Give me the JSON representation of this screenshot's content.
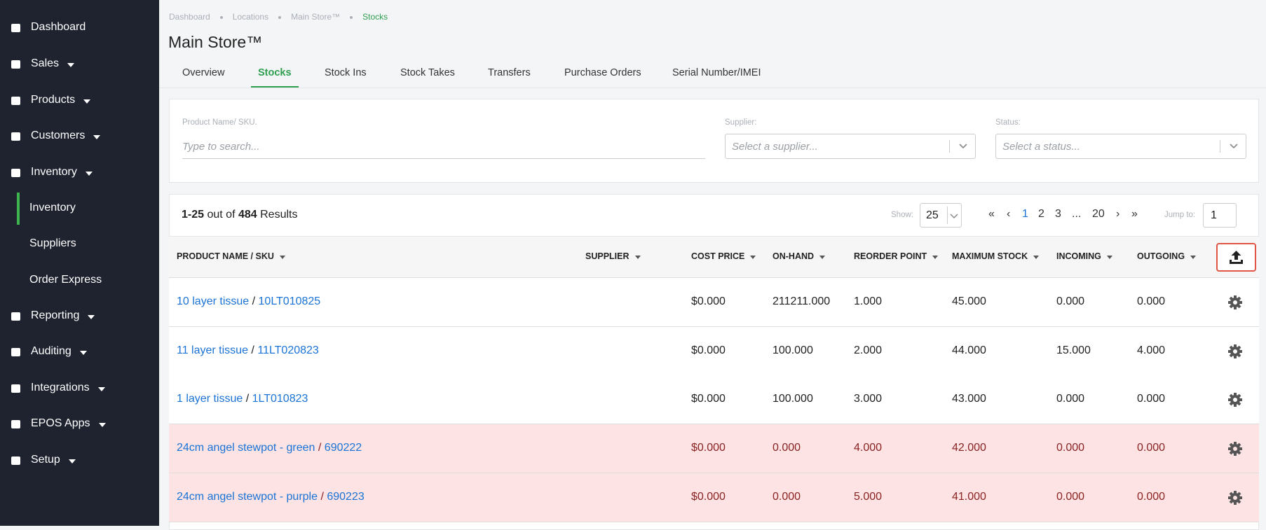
{
  "sidebar": {
    "items": [
      {
        "label": "Dashboard",
        "caret": false
      },
      {
        "label": "Sales",
        "caret": true
      },
      {
        "label": "Products",
        "caret": true
      },
      {
        "label": "Customers",
        "caret": true
      },
      {
        "label": "Inventory",
        "caret": true,
        "sub": [
          "Inventory",
          "Suppliers",
          "Order Express"
        ]
      },
      {
        "label": "Reporting",
        "caret": true
      },
      {
        "label": "Auditing",
        "caret": true
      },
      {
        "label": "Integrations",
        "caret": true
      },
      {
        "label": "EPOS Apps",
        "caret": true
      },
      {
        "label": "Setup",
        "caret": true
      }
    ]
  },
  "breadcrumb": [
    "Dashboard",
    "Locations",
    "Main Store™",
    "Stocks"
  ],
  "title": "Main Store™",
  "tabs": [
    "Overview",
    "Stocks",
    "Stock Ins",
    "Stock Takes",
    "Transfers",
    "Purchase Orders",
    "Serial Number/IMEI"
  ],
  "filters": {
    "product": {
      "label": "Product Name/ SKU.",
      "placeholder": "Type to search..."
    },
    "supplier": {
      "label": "Supplier:",
      "placeholder": "Select a supplier..."
    },
    "status": {
      "label": "Status:",
      "placeholder": "Select a status..."
    }
  },
  "results": {
    "range": "1-25",
    "middle": "out of",
    "total": "484",
    "suffix": "Results"
  },
  "show": {
    "label": "Show:",
    "value": "25"
  },
  "pagination": [
    "«",
    "‹",
    "1",
    "2",
    "3",
    "...",
    "20",
    "›",
    "»"
  ],
  "jump": {
    "label": "Jump to:",
    "value": "1"
  },
  "table": {
    "headers": [
      "PRODUCT NAME / SKU",
      "SUPPLIER",
      "COST PRICE",
      "ON-HAND",
      "REORDER POINT",
      "MAXIMUM STOCK",
      "INCOMING",
      "OUTGOING"
    ],
    "rows": [
      {
        "name": "10 layer tissue",
        "sku": "10LT010825",
        "supplier": null,
        "cost": "$0.000",
        "on_hand": "211211.000",
        "reorder": "1.000",
        "maximum": "45.000",
        "incoming": "0.000",
        "outgoing": "0.000",
        "highlighted": false
      },
      {
        "name": "11 layer tissue",
        "sku": "11LT020823",
        "supplier": null,
        "cost": "$0.000",
        "on_hand": "100.000",
        "reorder": "2.000",
        "maximum": "44.000",
        "incoming": "15.000",
        "outgoing": "4.000",
        "highlighted": false
      },
      {
        "name": "1 layer tissue",
        "sku": "1LT010823",
        "supplier": null,
        "cost": "$0.000",
        "on_hand": "100.000",
        "reorder": "3.000",
        "maximum": "43.000",
        "incoming": "0.000",
        "outgoing": "0.000",
        "highlighted": false
      },
      {
        "name": "24cm angel stewpot - green",
        "sku": "690222",
        "supplier": null,
        "cost": "$0.000",
        "on_hand": "0.000",
        "reorder": "4.000",
        "maximum": "42.000",
        "incoming": "0.000",
        "outgoing": "0.000",
        "highlighted": true
      },
      {
        "name": "24cm angel stewpot - purple",
        "sku": "690223",
        "supplier": null,
        "cost": "$0.000",
        "on_hand": "0.000",
        "reorder": "5.000",
        "maximum": "41.000",
        "incoming": "0.000",
        "outgoing": "0.000",
        "highlighted": true
      }
    ]
  }
}
